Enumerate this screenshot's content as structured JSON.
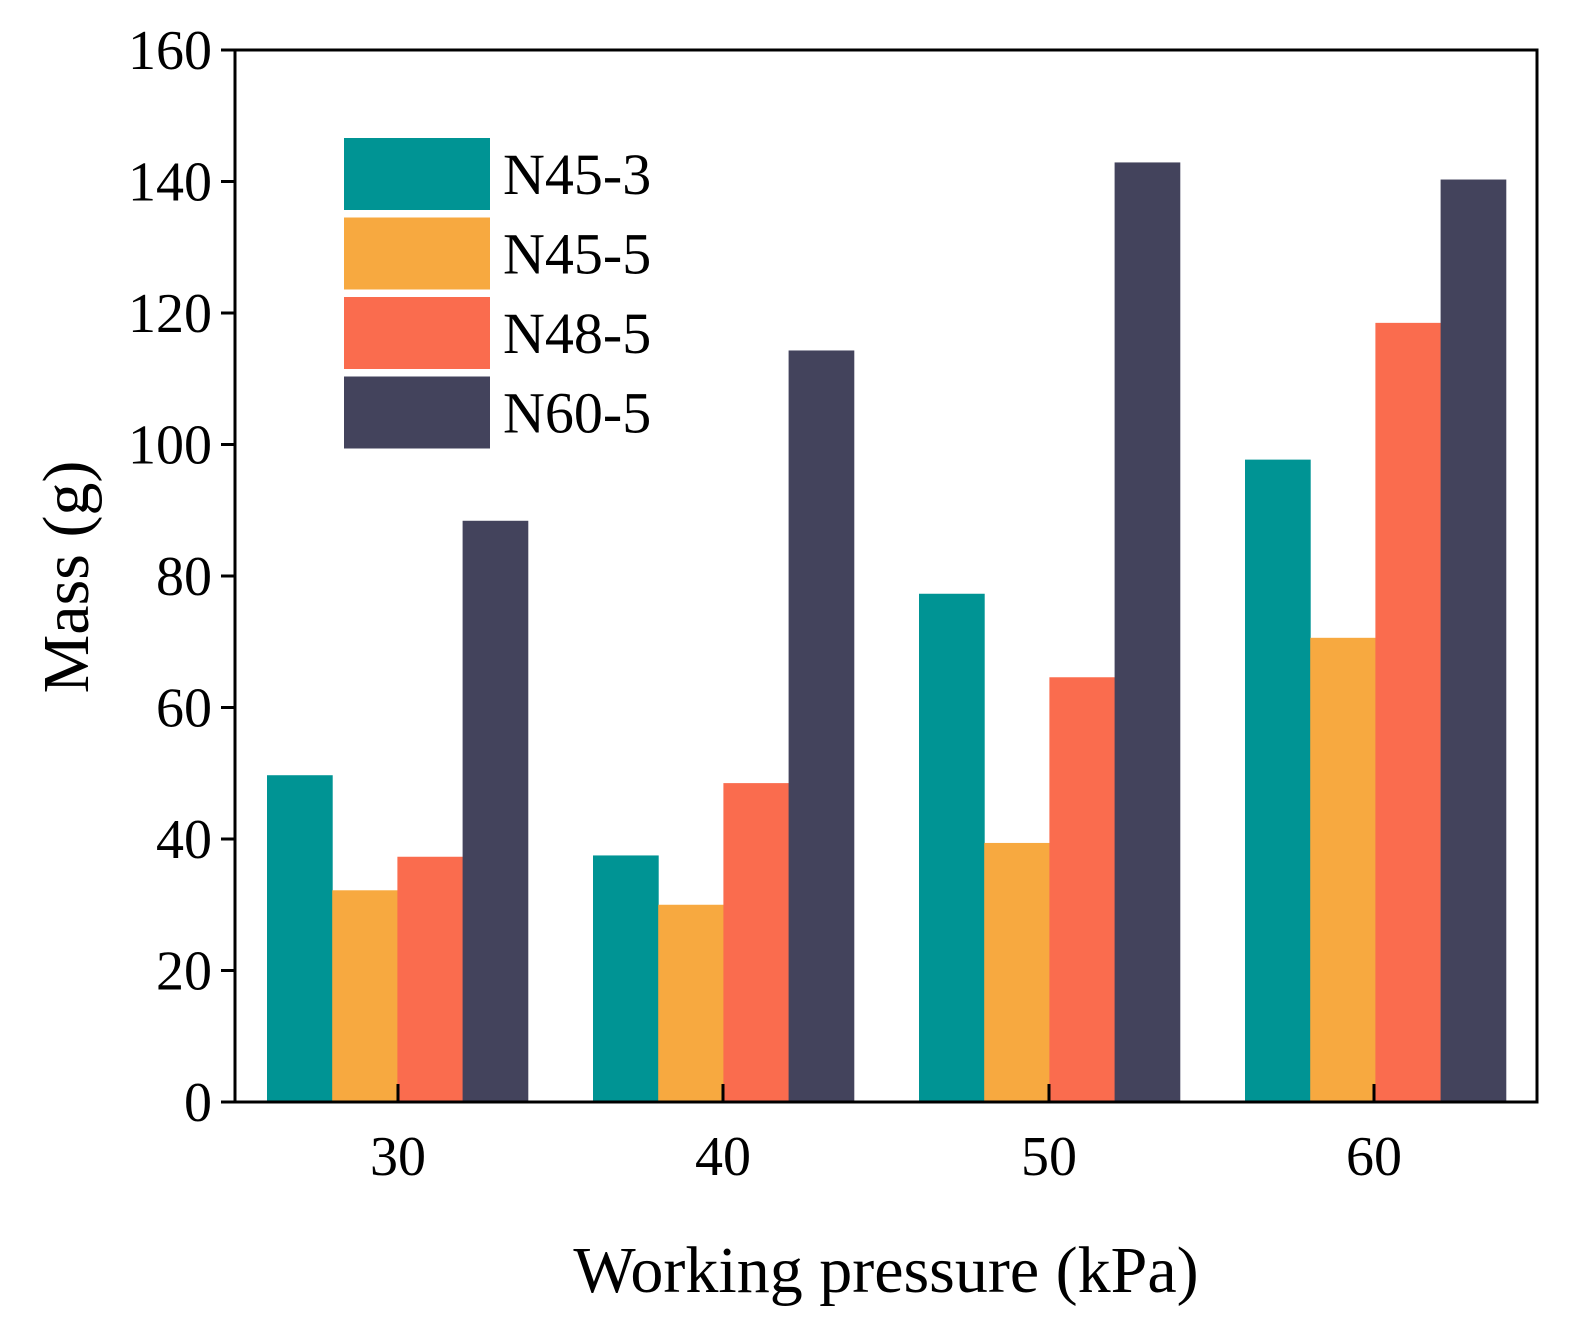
{
  "colors": {
    "N45-3": "#009494",
    "N45-5": "#f7a940",
    "N48-5": "#fa6c4e",
    "N60-5": "#43435c"
  },
  "chart_data": {
    "type": "bar",
    "categories": [
      "30",
      "40",
      "50",
      "60"
    ],
    "series": [
      {
        "name": "N45-3",
        "values": [
          49.7,
          37.5,
          77.3,
          97.7
        ]
      },
      {
        "name": "N45-5",
        "values": [
          32.2,
          30.0,
          39.4,
          70.6
        ]
      },
      {
        "name": "N48-5",
        "values": [
          37.3,
          48.5,
          64.6,
          118.5
        ]
      },
      {
        "name": "N60-5",
        "values": [
          88.4,
          114.3,
          142.9,
          140.3
        ]
      }
    ],
    "xlabel": "Working pressure (kPa)",
    "ylabel": "Mass (g)",
    "ylim": [
      0,
      160
    ],
    "yticks": [
      "0",
      "20",
      "40",
      "60",
      "80",
      "100",
      "120",
      "140",
      "160"
    ],
    "grid": false,
    "legend_position": "top-left"
  }
}
